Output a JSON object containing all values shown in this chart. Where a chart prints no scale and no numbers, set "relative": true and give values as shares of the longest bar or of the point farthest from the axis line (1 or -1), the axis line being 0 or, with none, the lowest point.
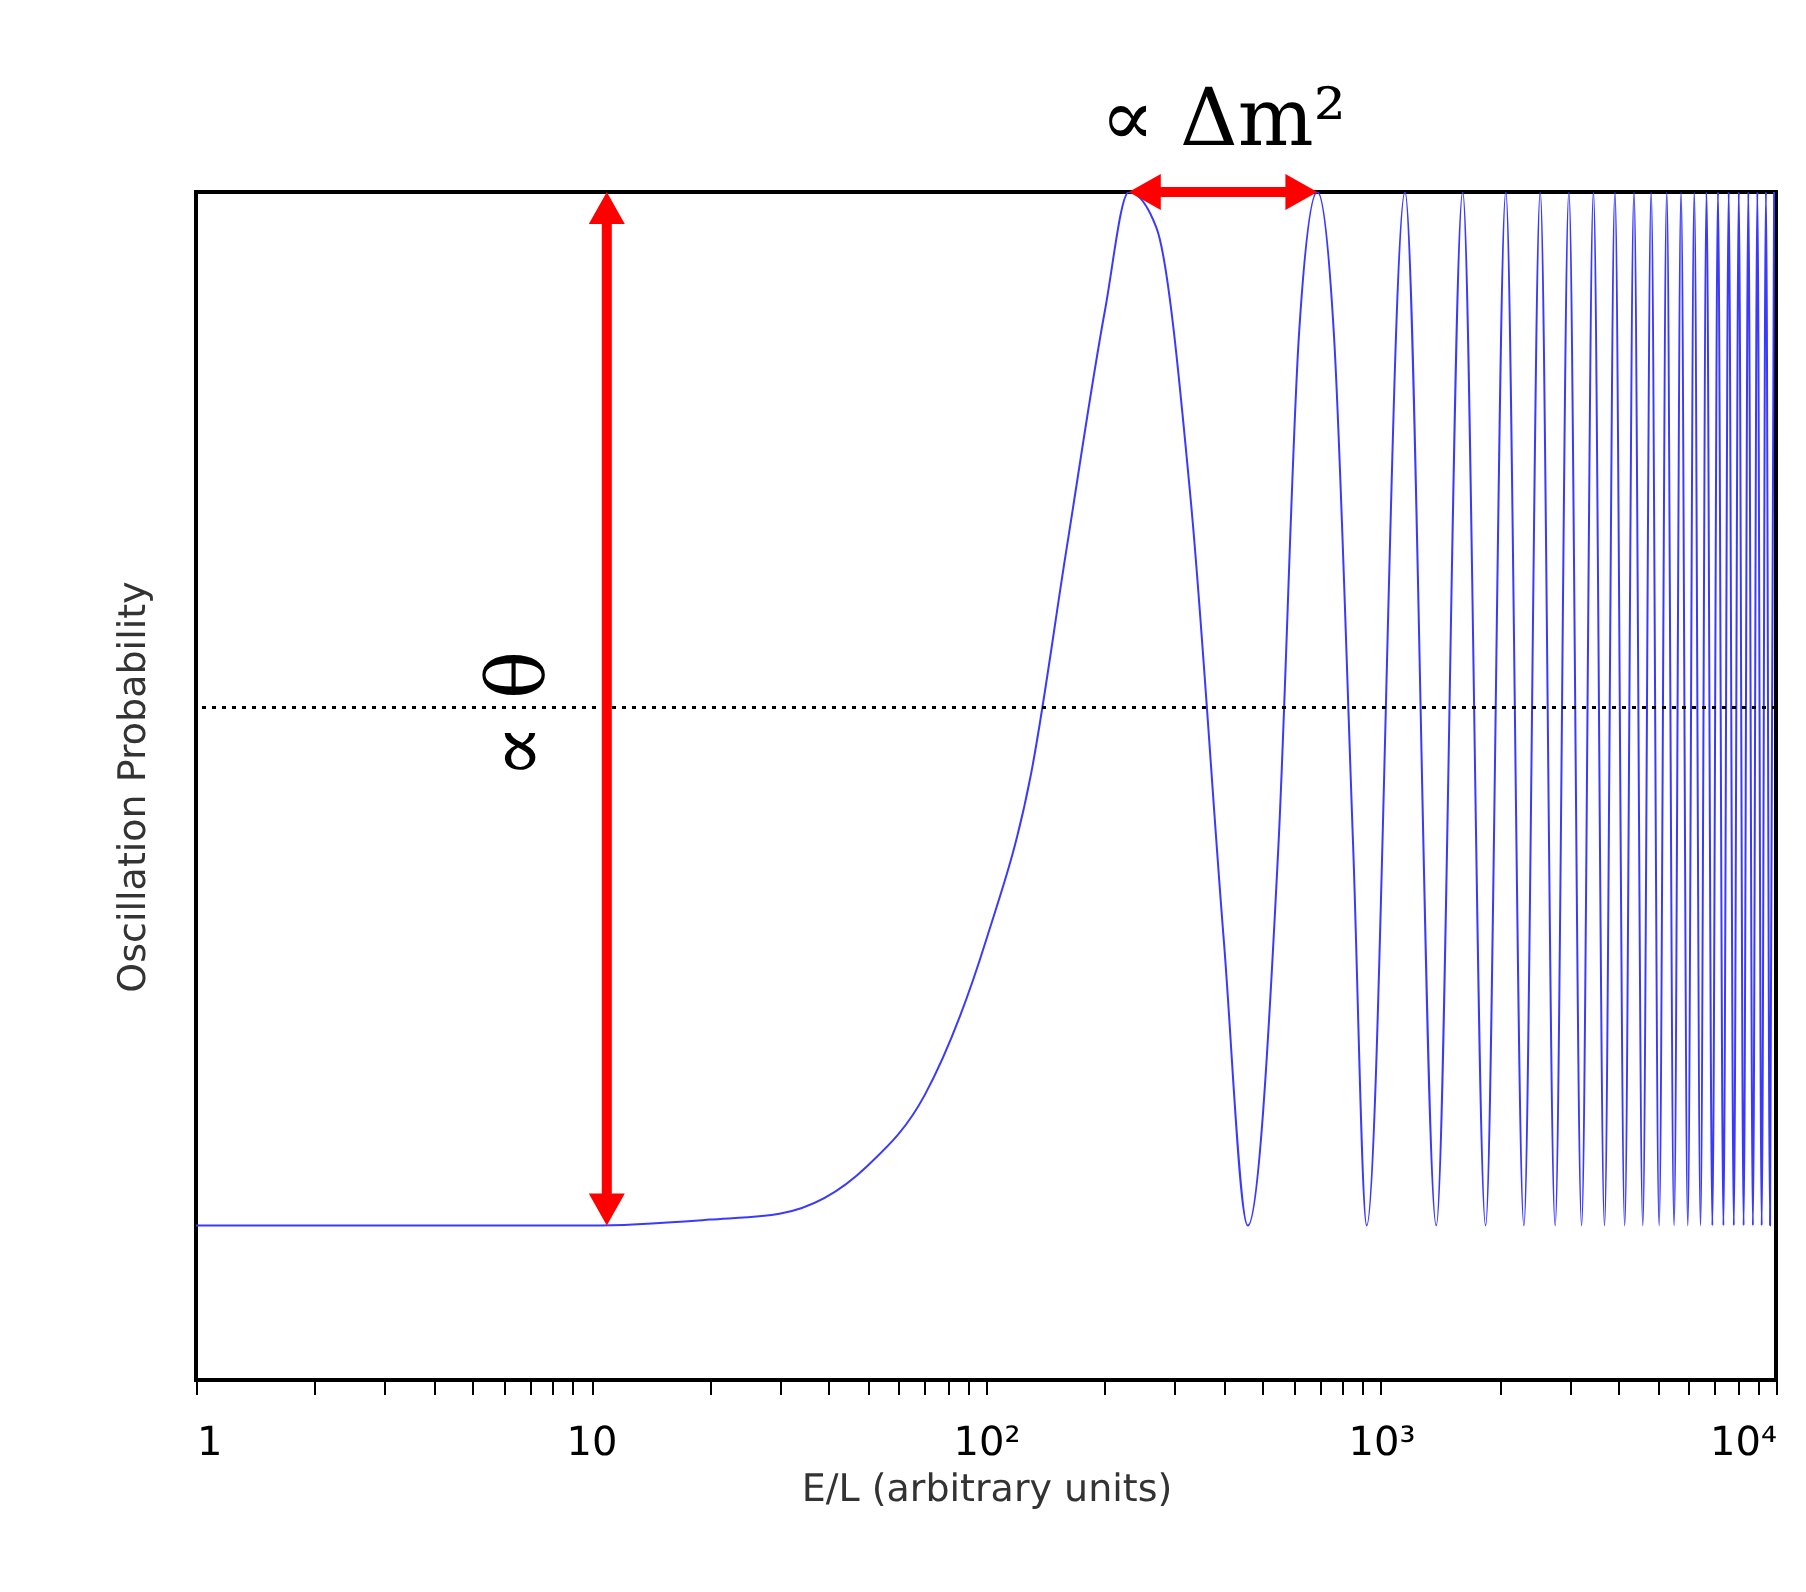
{
  "chart_data": {
    "type": "line",
    "relative": true,
    "xlabel": "E/L (arbitrary units)",
    "ylabel": "Oscillation Probability",
    "log": "x",
    "xlim": [
      1,
      10000
    ],
    "xticks": [
      1,
      {
        "value": 2,
        "label": null
      },
      {
        "value": 3,
        "label": null
      },
      {
        "value": 4,
        "label": null
      },
      {
        "value": 5,
        "label": null
      },
      {
        "value": 6,
        "label": null
      },
      {
        "value": 7,
        "label": null
      },
      {
        "value": 8,
        "label": null
      },
      {
        "value": 9,
        "label": null
      },
      10,
      {
        "value": 20,
        "label": null
      },
      {
        "value": 30,
        "label": null
      },
      {
        "value": 40,
        "label": null
      },
      {
        "value": 50,
        "label": null
      },
      {
        "value": 60,
        "label": null
      },
      {
        "value": 70,
        "label": null
      },
      {
        "value": 80,
        "label": null
      },
      {
        "value": 90,
        "label": null
      },
      {
        "value": 100,
        "label": "10²"
      },
      {
        "value": 200,
        "label": null
      },
      {
        "value": 300,
        "label": null
      },
      {
        "value": 400,
        "label": null
      },
      {
        "value": 500,
        "label": null
      },
      {
        "value": 600,
        "label": null
      },
      {
        "value": 700,
        "label": null
      },
      {
        "value": 800,
        "label": null
      },
      {
        "value": 900,
        "label": null
      },
      {
        "value": 1000,
        "label": "10³"
      },
      {
        "value": 2000,
        "label": null
      },
      {
        "value": 3000,
        "label": null
      },
      {
        "value": 4000,
        "label": null
      },
      {
        "value": 5000,
        "label": null
      },
      {
        "value": 6000,
        "label": null
      },
      {
        "value": 7000,
        "label": null
      },
      {
        "value": 8000,
        "label": null
      },
      {
        "value": 9000,
        "label": null
      },
      {
        "value": 10000,
        "label": "10⁴"
      }
    ],
    "x": [
      1,
      10,
      20,
      30,
      50,
      70,
      100,
      130,
      160,
      200,
      230,
      270,
      330,
      400,
      460,
      550,
      620,
      690,
      760,
      850,
      920,
      1150,
      1380,
      1610,
      1840,
      2070,
      2300,
      2530,
      2760,
      2990,
      3220,
      3450,
      3680,
      3910,
      4140,
      4370,
      4600,
      4830,
      5060,
      5290,
      5520,
      5750,
      5980,
      6210,
      6440,
      6670,
      6900,
      7130,
      7360,
      7590,
      7820,
      8050,
      8280,
      8510,
      8740,
      8970,
      9200,
      9430,
      9660,
      9890
    ],
    "series": [
      {
        "color": "#3a3aff",
        "values": [
          0.13,
          0.13,
          0.135,
          0.14,
          0.18,
          0.24,
          0.37,
          0.51,
          0.7,
          0.9,
          1,
          0.97,
          0.74,
          0.37,
          0.13,
          0.45,
          0.88,
          1,
          0.88,
          0.45,
          0.13,
          1,
          0.13,
          1,
          0.13,
          1,
          0.13,
          1,
          0.13,
          1,
          0.13,
          1,
          0.13,
          1,
          0.13,
          1,
          0.13,
          1,
          0.13,
          1,
          0.13,
          1,
          0.13,
          1,
          0.13,
          1,
          0.13,
          1,
          0.13,
          1,
          0.13,
          1,
          0.13,
          1,
          0.13,
          1,
          0.13,
          1,
          0.13,
          1
        ]
      }
    ],
    "ref_lines": [
      {
        "axis": "y",
        "value": 0.566,
        "color": "#000000",
        "line_style": "dotted"
      }
    ],
    "annotations": [
      "∝ θ",
      "∝ Δm²"
    ]
  }
}
